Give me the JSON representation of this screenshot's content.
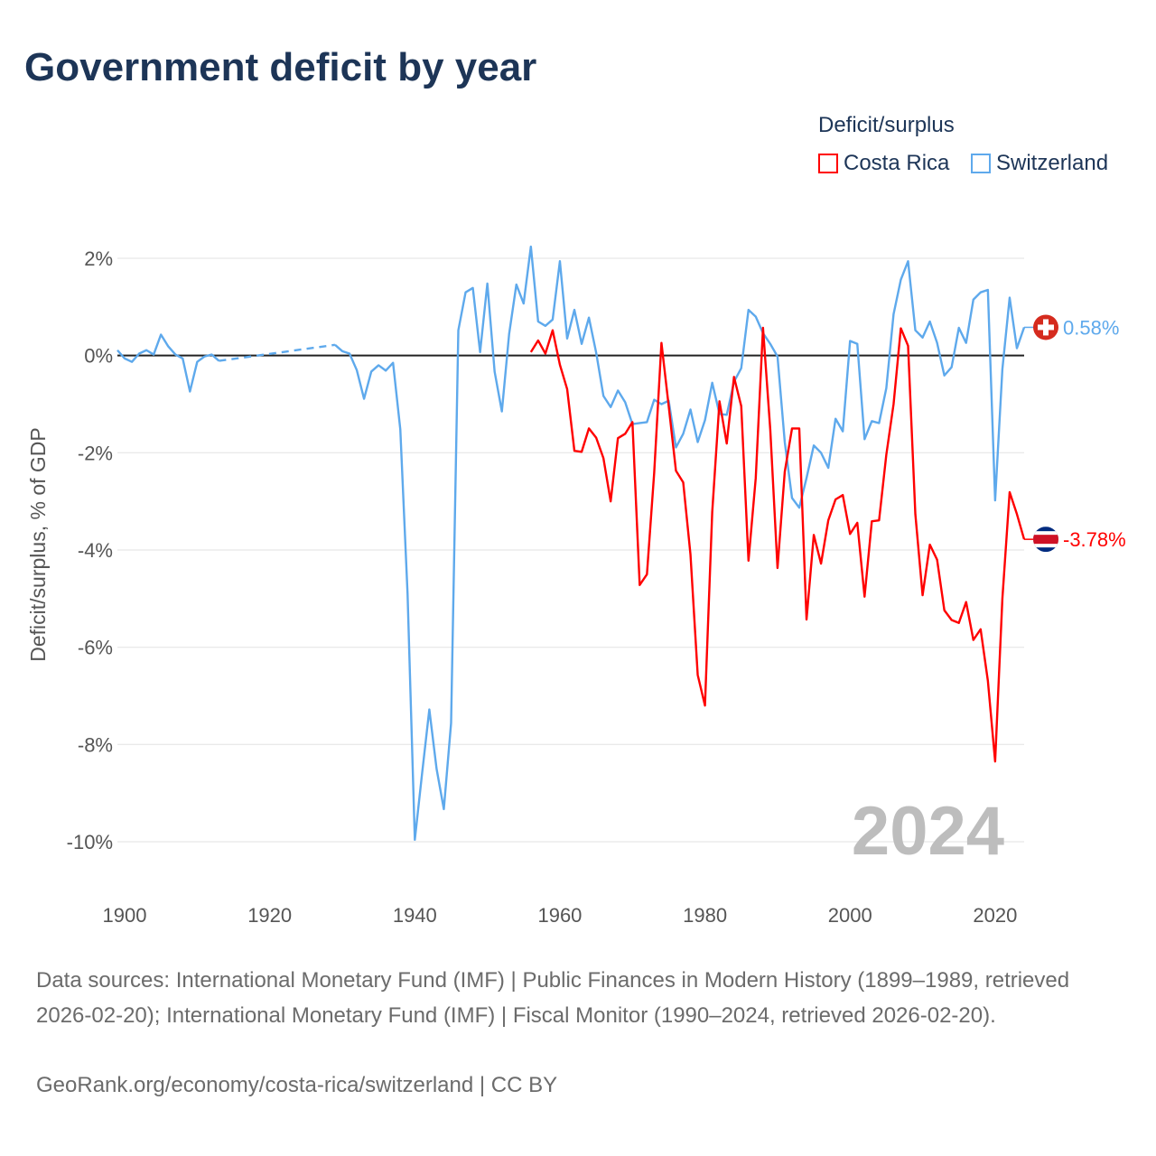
{
  "title": "Government deficit by year",
  "legend": {
    "title": "Deficit/surplus",
    "items": [
      {
        "label": "Costa Rica",
        "color": "#ff0000"
      },
      {
        "label": "Switzerland",
        "color": "#5ea9ec"
      }
    ]
  },
  "year_label": "2024",
  "footer": {
    "sources": "Data sources: International Monetary Fund (IMF) | Public Finances in Modern History (1899–1989, retrieved 2026-02-20); International Monetary Fund (IMF) | Fiscal Monitor (1990–2024, retrieved 2026-02-20).",
    "credit": "GeoRank.org/economy/costa-rica/switzerland | CC BY"
  },
  "chart_data": {
    "type": "line",
    "title": "Government deficit by year",
    "xlabel": "",
    "ylabel": "Deficit/surplus, % of GDP",
    "xlim": [
      1899,
      2024
    ],
    "ylim": [
      -10,
      2
    ],
    "x_ticks": [
      1900,
      1920,
      1940,
      1960,
      1980,
      2000,
      2020
    ],
    "x_tick_labels": [
      "1900",
      "1920",
      "1940",
      "1960",
      "1980",
      "2000",
      "2020"
    ],
    "y_ticks": [
      2,
      0,
      -2,
      -4,
      -6,
      -8,
      -10
    ],
    "y_tick_labels": [
      "2%",
      "0%",
      "-2%",
      "-4%",
      "-6%",
      "-8%",
      "-10%"
    ],
    "grid": true,
    "legend_position": "top-right",
    "series": [
      {
        "name": "Switzerland",
        "color": "#5ea9ec",
        "end_label": "0.58%",
        "x": [
          1899,
          1900,
          1901,
          1902,
          1903,
          1904,
          1905,
          1906,
          1907,
          1908,
          1909,
          1910,
          1911,
          1912,
          1913,
          1929,
          1930,
          1931,
          1932,
          1933,
          1934,
          1935,
          1936,
          1937,
          1938,
          1939,
          1940,
          1941,
          1942,
          1943,
          1944,
          1945,
          1946,
          1947,
          1948,
          1949,
          1950,
          1951,
          1952,
          1953,
          1954,
          1955,
          1956,
          1957,
          1958,
          1959,
          1960,
          1961,
          1962,
          1963,
          1964,
          1965,
          1966,
          1967,
          1968,
          1969,
          1970,
          1971,
          1972,
          1973,
          1974,
          1975,
          1976,
          1977,
          1978,
          1979,
          1980,
          1981,
          1982,
          1983,
          1984,
          1985,
          1986,
          1987,
          1988,
          1989,
          1990,
          1991,
          1992,
          1993,
          1994,
          1995,
          1996,
          1997,
          1998,
          1999,
          2000,
          2001,
          2002,
          2003,
          2004,
          2005,
          2006,
          2007,
          2008,
          2009,
          2010,
          2011,
          2012,
          2013,
          2014,
          2015,
          2016,
          2017,
          2018,
          2019,
          2020,
          2021,
          2022,
          2023,
          2024
        ],
        "values": [
          0.11,
          -0.06,
          -0.13,
          0.04,
          0.11,
          0.02,
          0.43,
          0.19,
          0.02,
          -0.06,
          -0.74,
          -0.13,
          -0.02,
          0.02,
          -0.11,
          0.22,
          0.09,
          0.04,
          -0.3,
          -0.89,
          -0.33,
          -0.2,
          -0.31,
          -0.15,
          -1.52,
          -4.9,
          -9.96,
          -8.6,
          -7.28,
          -8.5,
          -9.33,
          -7.56,
          0.52,
          1.3,
          1.39,
          0.07,
          1.48,
          -0.33,
          -1.15,
          0.44,
          1.46,
          1.07,
          2.24,
          0.7,
          0.61,
          0.74,
          1.94,
          0.35,
          0.94,
          0.24,
          0.78,
          0.06,
          -0.83,
          -1.06,
          -0.72,
          -0.96,
          -1.41,
          -1.39,
          -1.37,
          -0.91,
          -1.0,
          -0.93,
          -1.89,
          -1.61,
          -1.11,
          -1.78,
          -1.33,
          -0.56,
          -1.2,
          -1.22,
          -0.54,
          -0.26,
          0.94,
          0.8,
          0.46,
          0.24,
          -0.02,
          -1.78,
          -2.93,
          -3.13,
          -2.52,
          -1.85,
          -2.0,
          -2.31,
          -1.3,
          -1.56,
          0.3,
          0.24,
          -1.72,
          -1.35,
          -1.39,
          -0.67,
          0.85,
          1.56,
          1.94,
          0.52,
          0.37,
          0.7,
          0.26,
          -0.41,
          -0.24,
          0.57,
          0.26,
          1.15,
          1.3,
          1.35,
          -2.98,
          -0.28,
          1.19,
          0.15,
          0.58
        ]
      },
      {
        "name": "Costa Rica",
        "color": "#ff0000",
        "end_label": "-3.78%",
        "x": [
          1956,
          1957,
          1958,
          1959,
          1960,
          1961,
          1962,
          1963,
          1964,
          1965,
          1966,
          1967,
          1968,
          1969,
          1970,
          1971,
          1972,
          1973,
          1974,
          1975,
          1976,
          1977,
          1978,
          1979,
          1980,
          1981,
          1982,
          1983,
          1984,
          1985,
          1986,
          1987,
          1988,
          1989,
          1990,
          1991,
          1992,
          1993,
          1994,
          1995,
          1996,
          1997,
          1998,
          1999,
          2000,
          2001,
          2002,
          2003,
          2004,
          2005,
          2006,
          2007,
          2008,
          2009,
          2010,
          2011,
          2012,
          2013,
          2014,
          2015,
          2016,
          2017,
          2018,
          2019,
          2020,
          2021,
          2022,
          2023,
          2024
        ],
        "values": [
          0.07,
          0.31,
          0.04,
          0.52,
          -0.19,
          -0.69,
          -1.96,
          -1.98,
          -1.5,
          -1.69,
          -2.11,
          -3.0,
          -1.7,
          -1.61,
          -1.37,
          -4.72,
          -4.5,
          -2.41,
          0.26,
          -1.04,
          -2.37,
          -2.61,
          -4.09,
          -6.57,
          -7.2,
          -3.22,
          -0.94,
          -1.81,
          -0.44,
          -1.04,
          -4.22,
          -2.52,
          0.57,
          -1.52,
          -4.37,
          -2.39,
          -1.5,
          -1.5,
          -5.43,
          -3.69,
          -4.28,
          -3.39,
          -2.96,
          -2.87,
          -3.67,
          -3.44,
          -4.96,
          -3.41,
          -3.39,
          -2.04,
          -1.0,
          0.56,
          0.2,
          -3.26,
          -4.93,
          -3.89,
          -4.2,
          -5.24,
          -5.44,
          -5.5,
          -5.07,
          -5.85,
          -5.63,
          -6.69,
          -8.35,
          -5.0,
          -2.81,
          -3.26,
          -3.78
        ]
      }
    ]
  }
}
